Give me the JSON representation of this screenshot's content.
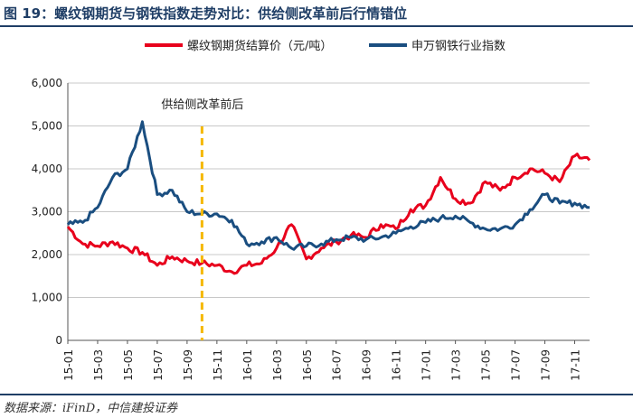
{
  "header": {
    "title": "图 19：螺纹钢期货与钢铁指数走势对比：供给侧改革前后行情错位"
  },
  "footer": {
    "source": "数据来源：iFinD，中信建投证券"
  },
  "chart_data": {
    "type": "line",
    "title": "",
    "xlabel": "",
    "ylabel": "",
    "ylim": [
      0,
      6000
    ],
    "yticks": [
      0,
      1000,
      2000,
      3000,
      4000,
      5000,
      6000
    ],
    "ytick_labels": [
      "0",
      "1,000",
      "2,000",
      "3,000",
      "4,000",
      "5,000",
      "6,000"
    ],
    "xlim": [
      "2015-01",
      "2017-12"
    ],
    "xtick_labels": [
      "15-01",
      "15-03",
      "15-05",
      "15-07",
      "15-09",
      "15-11",
      "16-01",
      "16-03",
      "16-05",
      "16-07",
      "16-09",
      "16-11",
      "17-01",
      "17-03",
      "17-05",
      "17-07",
      "17-09",
      "17-11"
    ],
    "grid": "horizontal",
    "legend_position": "top",
    "annotation": {
      "text": "供给侧改革前后",
      "x": "2015-10",
      "line_color": "#f5b800"
    },
    "series": [
      {
        "name": "螺纹钢期货结算价（元/吨）",
        "color": "#e8001c",
        "x": [
          "2015-01",
          "2015-02",
          "2015-03",
          "2015-04",
          "2015-05",
          "2015-06",
          "2015-07",
          "2015-08",
          "2015-09",
          "2015-10",
          "2015-11",
          "2015-12",
          "2016-01",
          "2016-02",
          "2016-03",
          "2016-04",
          "2016-05",
          "2016-06",
          "2016-07",
          "2016-08",
          "2016-09",
          "2016-10",
          "2016-11",
          "2016-12",
          "2017-01",
          "2017-02",
          "2017-03",
          "2017-04",
          "2017-05",
          "2017-06",
          "2017-07",
          "2017-08",
          "2017-09",
          "2017-10",
          "2017-11",
          "2017-12"
        ],
        "values": [
          2650,
          2250,
          2200,
          2300,
          2150,
          2050,
          1750,
          1950,
          1850,
          1800,
          1750,
          1600,
          1750,
          1800,
          2150,
          2700,
          1900,
          2150,
          2300,
          2450,
          2400,
          2700,
          2600,
          3050,
          3150,
          3800,
          3300,
          3200,
          3700,
          3500,
          3800,
          4000,
          3900,
          3700,
          4300,
          4200
        ]
      },
      {
        "name": "申万钢铁行业指数",
        "color": "#1a4e80",
        "x": [
          "2015-01",
          "2015-02",
          "2015-03",
          "2015-04",
          "2015-05",
          "2015-06",
          "2015-07",
          "2015-08",
          "2015-09",
          "2015-10",
          "2015-11",
          "2015-12",
          "2016-01",
          "2016-02",
          "2016-03",
          "2016-04",
          "2016-05",
          "2016-06",
          "2016-07",
          "2016-08",
          "2016-09",
          "2016-10",
          "2016-11",
          "2016-12",
          "2017-01",
          "2017-02",
          "2017-03",
          "2017-04",
          "2017-05",
          "2017-06",
          "2017-07",
          "2017-08",
          "2017-09",
          "2017-10",
          "2017-11",
          "2017-12"
        ],
        "values": [
          2700,
          2750,
          3100,
          3800,
          4000,
          5100,
          3400,
          3500,
          3000,
          2950,
          2950,
          2800,
          2250,
          2300,
          2400,
          2150,
          2200,
          2250,
          2350,
          2400,
          2350,
          2400,
          2500,
          2650,
          2750,
          2850,
          2900,
          2750,
          2600,
          2600,
          2700,
          3050,
          3400,
          3200,
          3200,
          3100
        ]
      }
    ]
  }
}
